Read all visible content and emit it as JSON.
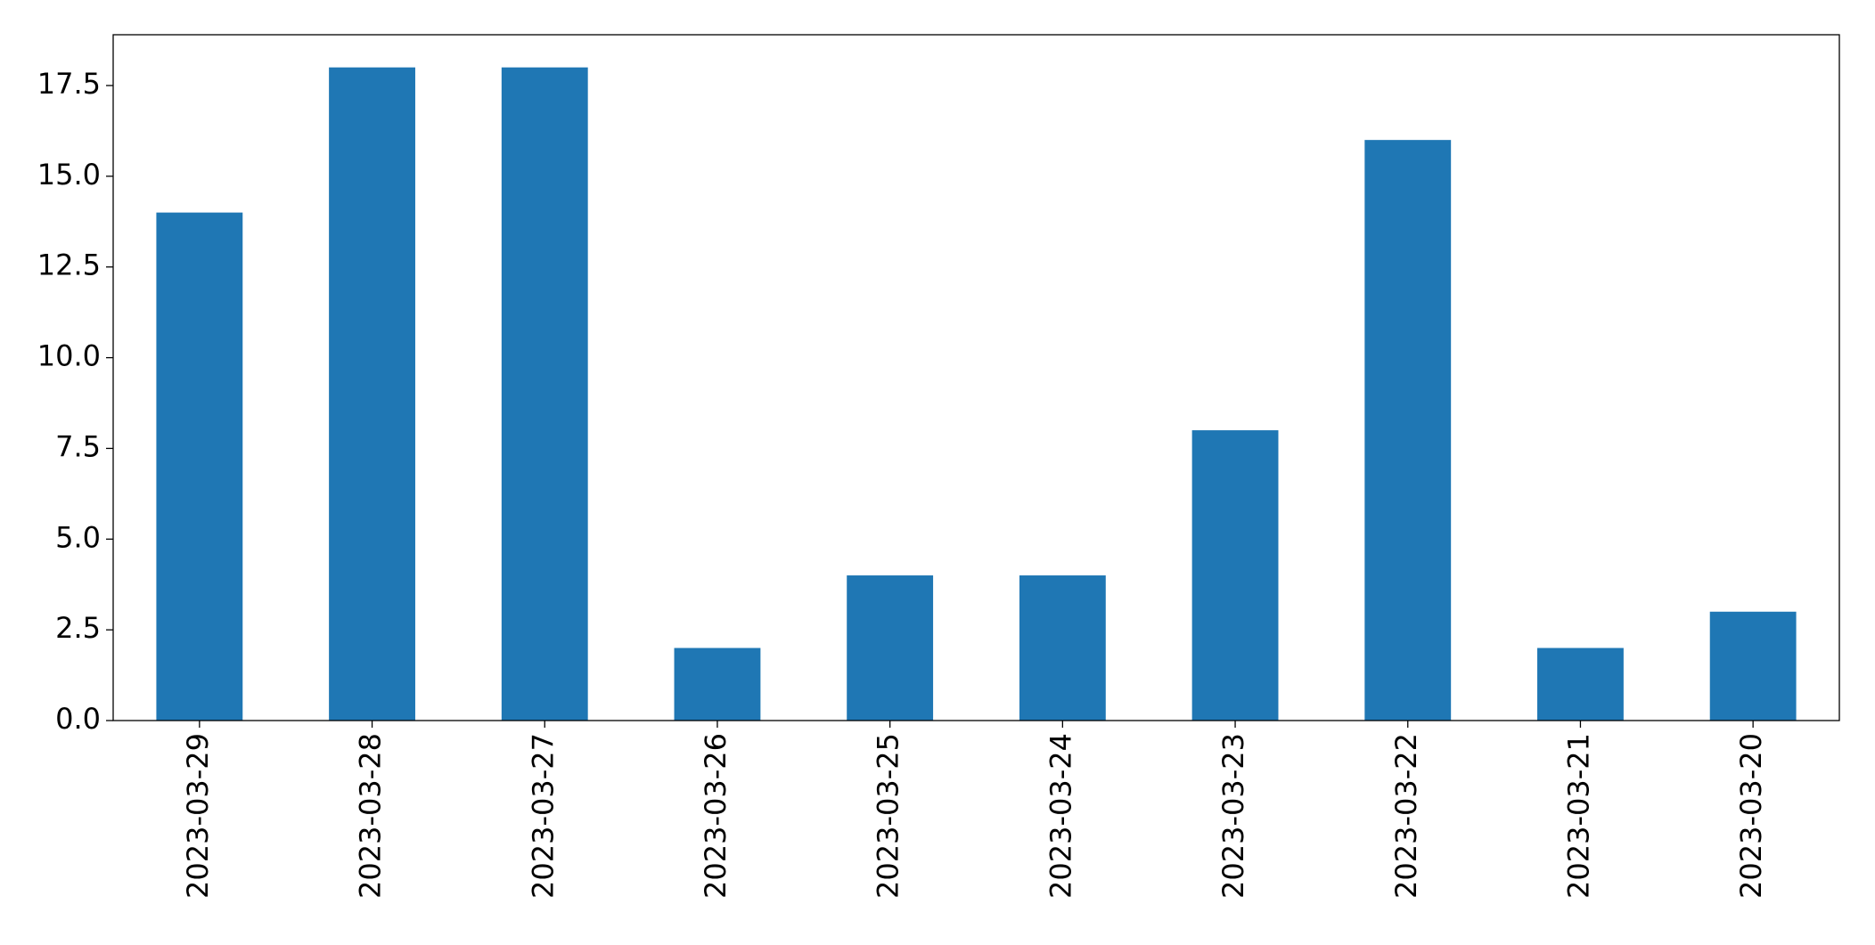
{
  "chart_data": {
    "type": "bar",
    "categories": [
      "2023-03-29",
      "2023-03-28",
      "2023-03-27",
      "2023-03-26",
      "2023-03-25",
      "2023-03-24",
      "2023-03-23",
      "2023-03-22",
      "2023-03-21",
      "2023-03-20"
    ],
    "values": [
      14,
      18,
      18,
      2,
      4,
      4,
      8,
      16,
      2,
      3
    ],
    "color": "#1f77b4",
    "ylim": [
      0,
      18.9
    ],
    "yticks": [
      {
        "value": 0,
        "label": "0.0"
      },
      2.5,
      {
        "value": 5,
        "label": "5.0"
      },
      7.5,
      {
        "value": 10,
        "label": "10.0"
      },
      12.5,
      {
        "value": 15,
        "label": "15.0"
      },
      17.5
    ],
    "grid": false
  }
}
